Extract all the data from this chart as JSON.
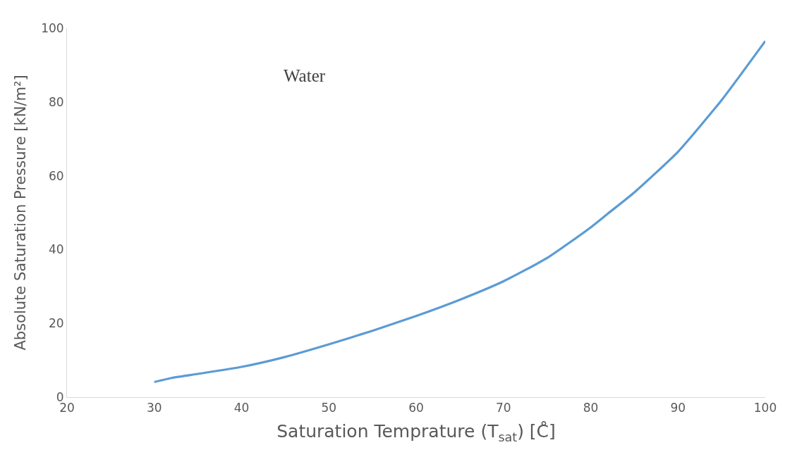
{
  "chart_data": {
    "type": "line",
    "xlabel": "Saturation Temprature (T$_{sat}$) [C̊]",
    "ylabel": "Absolute Saturation Pressure [kN/m²]",
    "annotations": [
      "Water"
    ],
    "x": [
      30,
      32,
      35,
      40,
      45,
      50,
      55,
      60,
      65,
      70,
      75,
      80,
      82,
      85,
      90,
      95,
      100
    ],
    "series": [
      {
        "color": "#5b9bd5",
        "values": [
          4.1,
          5.2,
          6.3,
          8.2,
          10.9,
          14.3,
          18.0,
          22.0,
          26.4,
          31.4,
          37.7,
          46.0,
          49.8,
          55.5,
          66.5,
          80.5,
          96.5
        ]
      }
    ],
    "xlim": [
      20,
      100
    ],
    "ylim": [
      0,
      100
    ],
    "xticks": [
      20,
      30,
      40,
      50,
      60,
      70,
      80,
      90,
      100
    ],
    "yticks": [
      0,
      20,
      40,
      60,
      80,
      100
    ],
    "marker": "none",
    "line_style": "solid"
  }
}
